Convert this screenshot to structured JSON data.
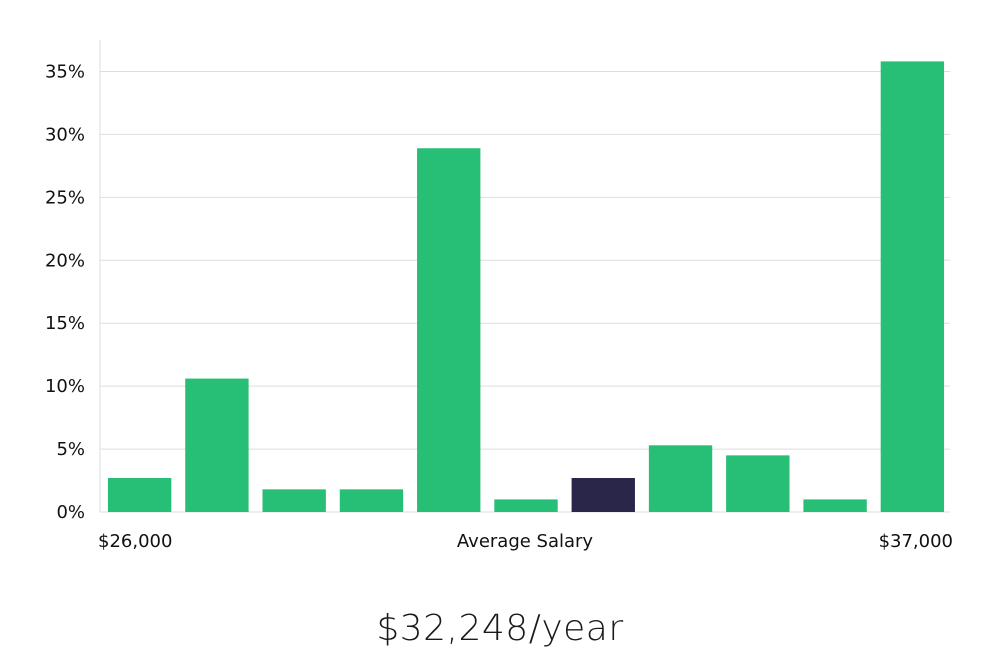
{
  "chart_data": {
    "type": "bar",
    "categories": [
      "1",
      "2",
      "3",
      "4",
      "5",
      "6",
      "7",
      "8",
      "9",
      "10",
      "11"
    ],
    "values": [
      2.7,
      10.6,
      1.8,
      1.8,
      28.9,
      1.0,
      2.7,
      5.3,
      4.5,
      1.0,
      35.8
    ],
    "highlight_index": 6,
    "ylim": [
      0,
      37.5
    ],
    "yticks": [
      0,
      5,
      10,
      15,
      20,
      25,
      30,
      35
    ],
    "ytick_labels": [
      "0%",
      "5%",
      "10%",
      "15%",
      "20%",
      "25%",
      "30%",
      "35%"
    ],
    "x_min_label": "$26,000",
    "x_max_label": "$37,000",
    "xlabel": "Average Salary",
    "grid": true,
    "colors": {
      "bar": "#27be75",
      "highlight": "#29264a",
      "grid": "#dddddd",
      "axis": "#dddddd"
    }
  },
  "caption": "$32,248/year"
}
